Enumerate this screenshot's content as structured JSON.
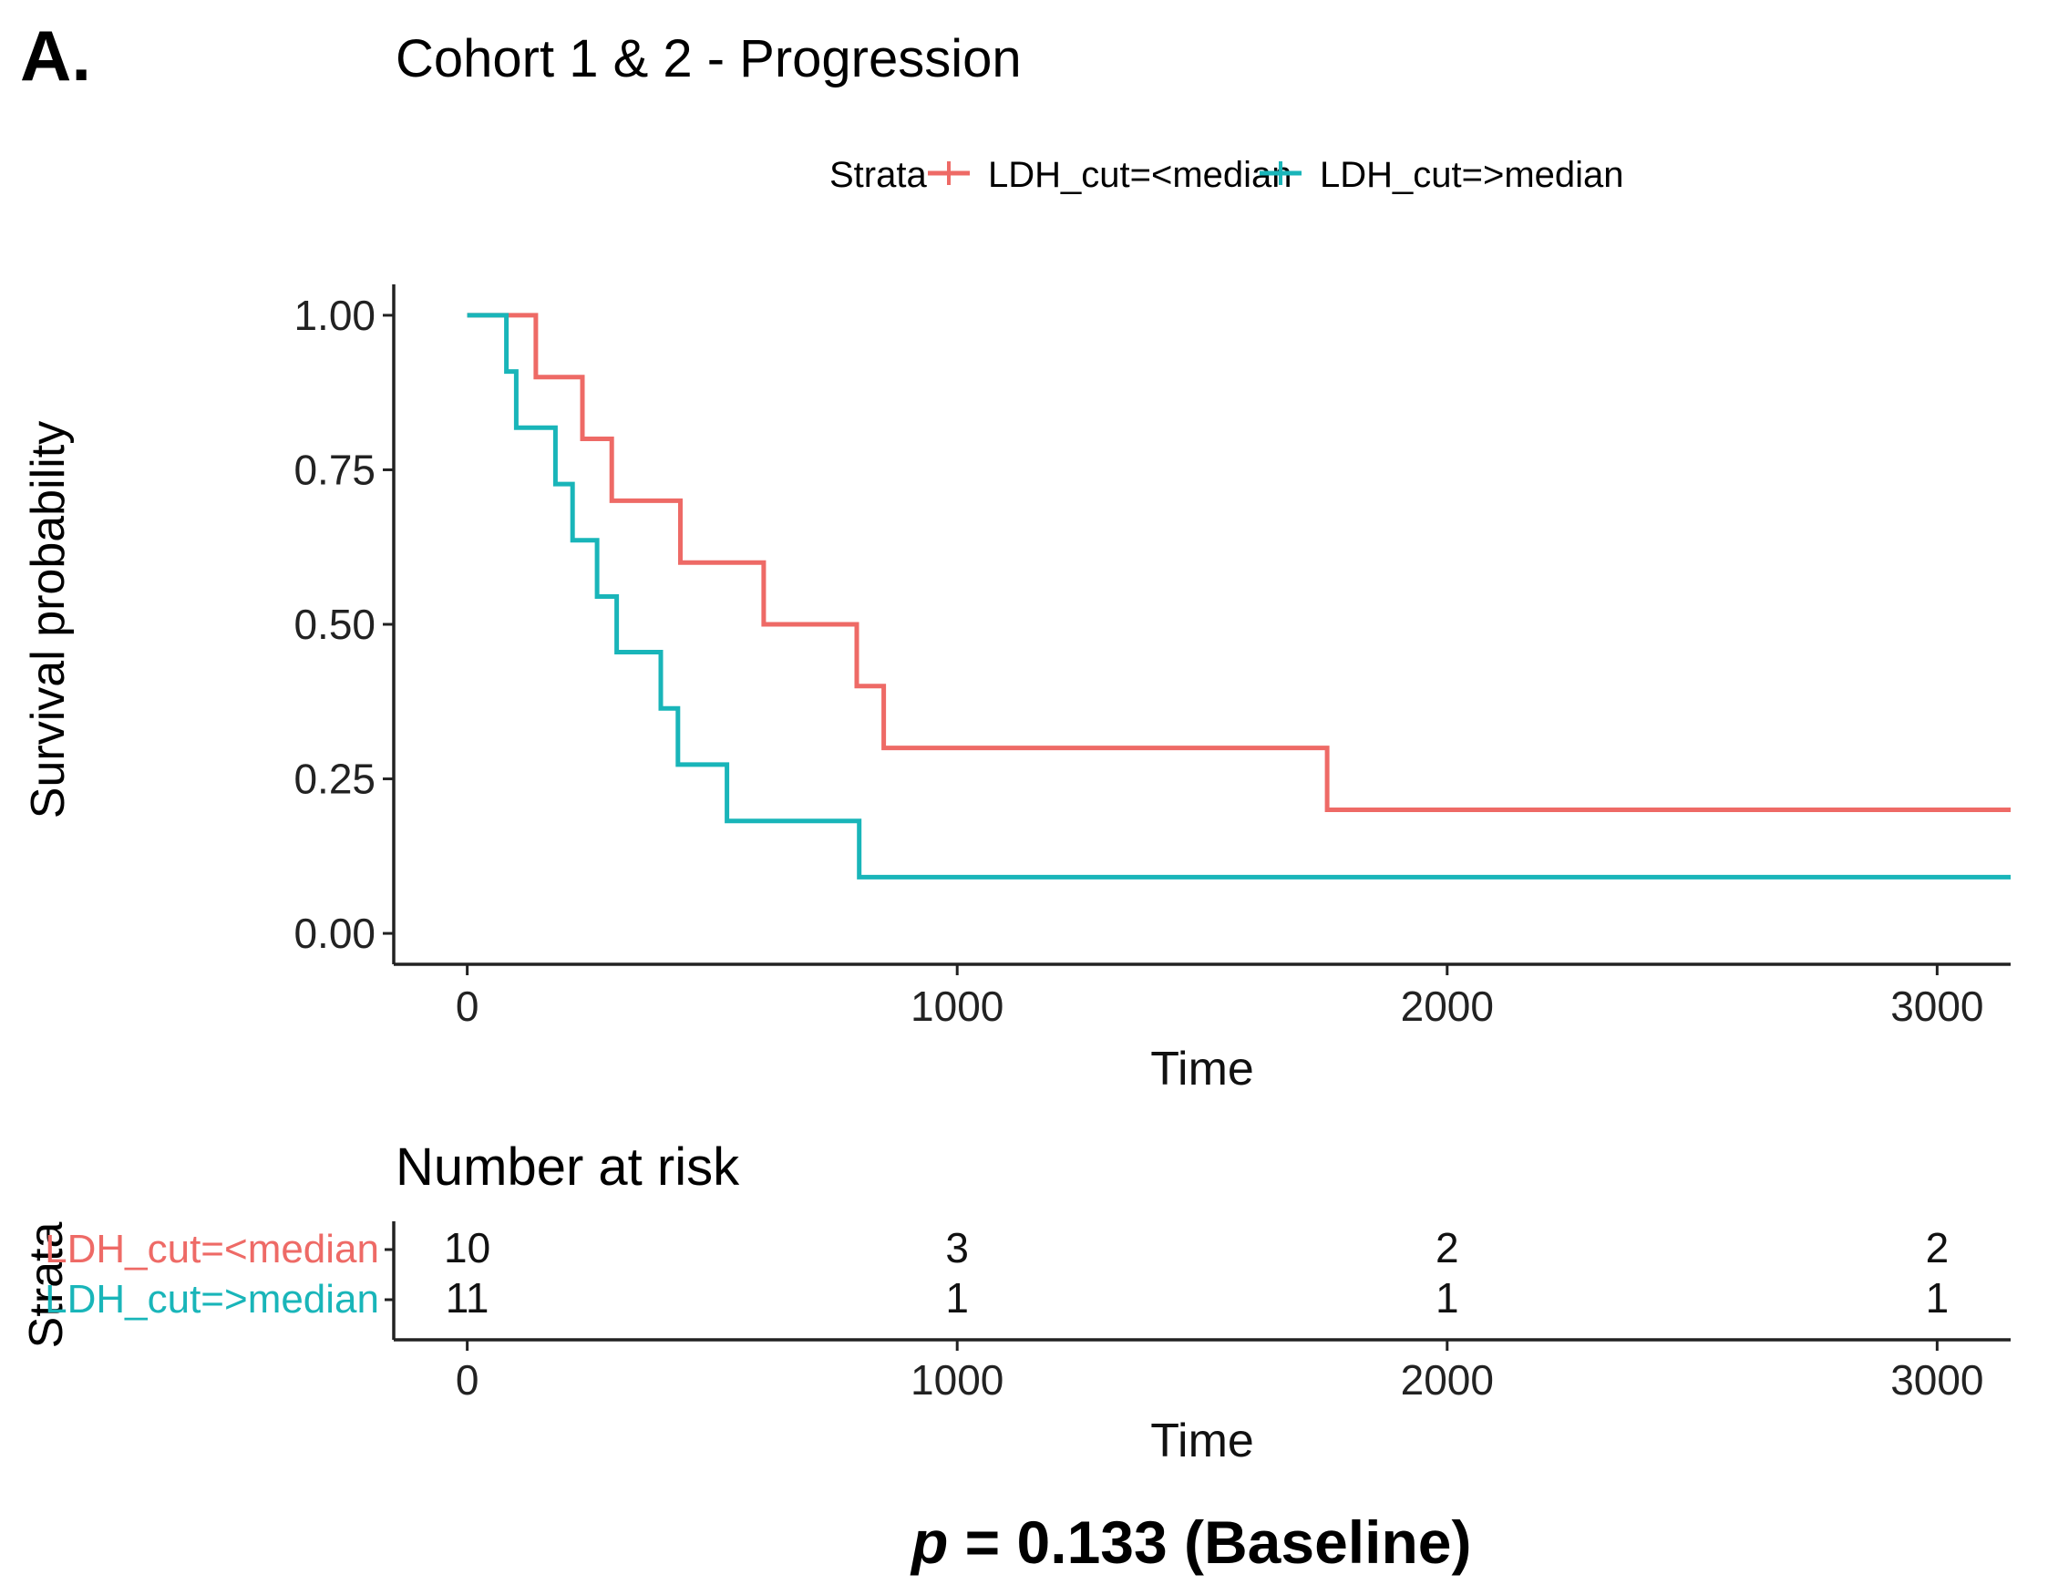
{
  "panel_label": "A.",
  "pvalue": {
    "prefix": "p",
    "text": " = 0.133 (Baseline)"
  },
  "colors": {
    "low": "#ee6a66",
    "high": "#19b5b9",
    "axis": "#222222",
    "text": "#111111"
  },
  "chart_data": {
    "type": "line",
    "subtype": "kaplan-meier",
    "title": "Cohort 1 & 2 - Progression",
    "xlabel": "Time",
    "ylabel": "Survival probability",
    "xlim": [
      -150,
      3150
    ],
    "ylim": [
      -0.05,
      1.05
    ],
    "xticks": [
      0,
      1000,
      2000,
      3000
    ],
    "yticks": [
      0.0,
      0.25,
      0.5,
      0.75,
      1.0
    ],
    "ytick_labels": [
      "0.00",
      "0.25",
      "0.50",
      "0.75",
      "1.00"
    ],
    "legend": {
      "title": "Strata",
      "placement": "top"
    },
    "series": [
      {
        "name": "LDH_cut=<median",
        "color_key": "low",
        "steps": [
          [
            0,
            1.0
          ],
          [
            140,
            0.9
          ],
          [
            235,
            0.8
          ],
          [
            295,
            0.7
          ],
          [
            435,
            0.6
          ],
          [
            605,
            0.5
          ],
          [
            795,
            0.4
          ],
          [
            850,
            0.3
          ],
          [
            1755,
            0.2
          ]
        ],
        "end_x": 3150
      },
      {
        "name": "LDH_cut=>median",
        "color_key": "high",
        "steps": [
          [
            0,
            1.0
          ],
          [
            80,
            0.909
          ],
          [
            100,
            0.818
          ],
          [
            180,
            0.727
          ],
          [
            215,
            0.636
          ],
          [
            265,
            0.545
          ],
          [
            305,
            0.455
          ],
          [
            395,
            0.364
          ],
          [
            430,
            0.273
          ],
          [
            530,
            0.182
          ],
          [
            800,
            0.091
          ]
        ],
        "end_x": 3150
      }
    ],
    "risk_table": {
      "title": "Number at risk",
      "ylabel": "Strata",
      "xlabel": "Time",
      "times": [
        0,
        1000,
        2000,
        3000
      ],
      "rows": [
        {
          "name": "LDH_cut=<median",
          "color_key": "low",
          "counts": [
            10,
            3,
            2,
            2
          ]
        },
        {
          "name": "LDH_cut=>median",
          "color_key": "high",
          "counts": [
            11,
            1,
            1,
            1
          ]
        }
      ]
    }
  }
}
